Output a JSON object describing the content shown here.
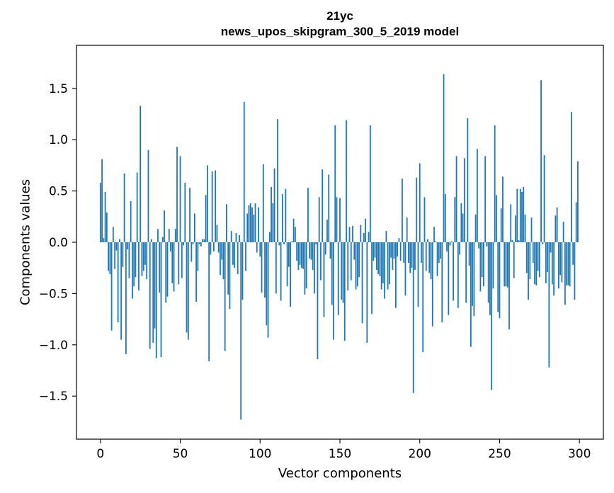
{
  "chart_data": {
    "type": "bar",
    "title": "21yc",
    "subtitle": "news_upos_skipgram_300_5_2019 model",
    "xlabel": "Vector components",
    "ylabel": "Components values",
    "xlim": [
      -15,
      315
    ],
    "ylim": [
      -1.92,
      1.92
    ],
    "x_ticks": [
      0,
      50,
      100,
      150,
      200,
      250,
      300
    ],
    "y_ticks": [
      -1.5,
      -1.0,
      -0.5,
      0.0,
      0.5,
      1.0,
      1.5
    ],
    "y_tick_labels": [
      "−1.5",
      "−1.0",
      "−0.5",
      "0.0",
      "0.5",
      "1.0",
      "1.5"
    ],
    "x_tick_labels": [
      "0",
      "50",
      "100",
      "150",
      "200",
      "250",
      "300"
    ],
    "grid": false,
    "bar_color": "#1f77b4",
    "x": [
      0,
      1,
      2,
      3,
      4,
      5,
      6,
      7,
      8,
      9,
      10,
      11,
      12,
      13,
      14,
      15,
      16,
      17,
      18,
      19,
      20,
      21,
      22,
      23,
      24,
      25,
      26,
      27,
      28,
      29,
      30,
      31,
      32,
      33,
      34,
      35,
      36,
      37,
      38,
      39,
      40,
      41,
      42,
      43,
      44,
      45,
      46,
      47,
      48,
      49,
      50,
      51,
      52,
      53,
      54,
      55,
      56,
      57,
      58,
      59,
      60,
      61,
      62,
      63,
      64,
      65,
      66,
      67,
      68,
      69,
      70,
      71,
      72,
      73,
      74,
      75,
      76,
      77,
      78,
      79,
      80,
      81,
      82,
      83,
      84,
      85,
      86,
      87,
      88,
      89,
      90,
      91,
      92,
      93,
      94,
      95,
      96,
      97,
      98,
      99,
      100,
      101,
      102,
      103,
      104,
      105,
      106,
      107,
      108,
      109,
      110,
      111,
      112,
      113,
      114,
      115,
      116,
      117,
      118,
      119,
      120,
      121,
      122,
      123,
      124,
      125,
      126,
      127,
      128,
      129,
      130,
      131,
      132,
      133,
      134,
      135,
      136,
      137,
      138,
      139,
      140,
      141,
      142,
      143,
      144,
      145,
      146,
      147,
      148,
      149,
      150,
      151,
      152,
      153,
      154,
      155,
      156,
      157,
      158,
      159,
      160,
      161,
      162,
      163,
      164,
      165,
      166,
      167,
      168,
      169,
      170,
      171,
      172,
      173,
      174,
      175,
      176,
      177,
      178,
      179,
      180,
      181,
      182,
      183,
      184,
      185,
      186,
      187,
      188,
      189,
      190,
      191,
      192,
      193,
      194,
      195,
      196,
      197,
      198,
      199,
      200,
      201,
      202,
      203,
      204,
      205,
      206,
      207,
      208,
      209,
      210,
      211,
      212,
      213,
      214,
      215,
      216,
      217,
      218,
      219,
      220,
      221,
      222,
      223,
      224,
      225,
      226,
      227,
      228,
      229,
      230,
      231,
      232,
      233,
      234,
      235,
      236,
      237,
      238,
      239,
      240,
      241,
      242,
      243,
      244,
      245,
      246,
      247,
      248,
      249,
      250,
      251,
      252,
      253,
      254,
      255,
      256,
      257,
      258,
      259,
      260,
      261,
      262,
      263,
      264,
      265,
      266,
      267,
      268,
      269,
      270,
      271,
      272,
      273,
      274,
      275,
      276,
      277,
      278,
      279,
      280,
      281,
      282,
      283,
      284,
      285,
      286,
      287,
      288,
      289,
      290,
      291,
      292,
      293,
      294,
      295,
      296,
      297,
      298,
      299
    ],
    "values": [
      0.58,
      0.81,
      0.04,
      0.49,
      0.29,
      -0.28,
      -0.31,
      -0.86,
      0.15,
      -0.26,
      -0.08,
      -0.78,
      0.03,
      -0.95,
      -0.24,
      0.67,
      -1.09,
      -0.07,
      -0.35,
      0.4,
      -0.55,
      -0.43,
      -0.34,
      0.68,
      -0.47,
      1.33,
      -0.33,
      -0.28,
      -0.22,
      -0.36,
      0.9,
      -1.04,
      0.03,
      -0.98,
      -0.84,
      -1.13,
      0.13,
      -0.49,
      -1.12,
      0.05,
      0.31,
      -0.59,
      -0.53,
      0.13,
      -0.09,
      -0.4,
      -0.48,
      0.13,
      0.93,
      -0.41,
      0.84,
      -0.35,
      -0.03,
      0.58,
      -0.88,
      -0.95,
      0.53,
      -0.19,
      -0.02,
      0.28,
      -0.58,
      -0.28,
      -0.02,
      -0.04,
      0.03,
      0.03,
      0.46,
      0.75,
      -1.16,
      -0.12,
      0.69,
      -0.09,
      0.7,
      0.17,
      -0.1,
      -0.32,
      -0.17,
      -0.36,
      -1.06,
      0.37,
      -0.51,
      -0.65,
      0.11,
      -0.22,
      -0.25,
      0.09,
      -0.31,
      0.07,
      -1.73,
      -0.56,
      1.37,
      -0.28,
      0.28,
      0.36,
      0.38,
      0.34,
      0.27,
      0.38,
      -0.1,
      0.34,
      -0.14,
      -0.49,
      0.76,
      -0.54,
      -0.81,
      -0.93,
      0.1,
      0.54,
      0.38,
      0.72,
      -0.5,
      1.2,
      -0.03,
      -0.57,
      0.47,
      -0.02,
      0.52,
      -0.43,
      -0.24,
      -0.63,
      0.01,
      0.23,
      0.15,
      -0.18,
      -0.27,
      -0.22,
      -0.25,
      -0.26,
      -0.51,
      -0.45,
      0.53,
      -0.16,
      -0.17,
      -0.27,
      -0.5,
      -0.02,
      -1.14,
      0.44,
      -0.37,
      0.71,
      -0.73,
      -0.12,
      0.22,
      0.66,
      -0.16,
      -0.61,
      -0.95,
      1.14,
      0.44,
      -0.71,
      0.43,
      -0.56,
      -0.59,
      -0.96,
      1.19,
      -0.47,
      0.15,
      -0.37,
      0.16,
      -0.17,
      -0.46,
      -0.43,
      -0.34,
      0.17,
      -0.79,
      0.09,
      0.23,
      -0.98,
      0.1,
      1.14,
      -0.7,
      -0.18,
      -0.15,
      -0.27,
      -0.31,
      -0.33,
      -0.46,
      -0.4,
      -0.55,
      0.11,
      -0.46,
      -0.41,
      -0.15,
      -0.27,
      -0.16,
      -0.64,
      -0.14,
      0.04,
      -0.18,
      0.62,
      -0.2,
      -0.52,
      0.24,
      -0.2,
      -0.3,
      -0.25,
      -1.47,
      -0.27,
      0.63,
      -0.63,
      0.77,
      -0.2,
      -1.07,
      0.44,
      -0.28,
      0.03,
      -0.3,
      -0.36,
      -0.82,
      0.15,
      0.01,
      -0.33,
      -0.2,
      -0.16,
      -0.78,
      1.64,
      0.47,
      -0.09,
      -0.71,
      -0.03,
      0.01,
      -0.57,
      0.44,
      0.84,
      -0.64,
      -0.12,
      0.38,
      0.28,
      0.82,
      -0.59,
      1.21,
      -0.23,
      -1.02,
      -0.62,
      -0.72,
      0.27,
      0.91,
      -0.06,
      -0.48,
      -0.34,
      -0.43,
      0.84,
      -0.04,
      -0.59,
      -0.71,
      -1.44,
      -0.45,
      1.14,
      0.46,
      -0.68,
      -0.74,
      0.33,
      0.64,
      -0.43,
      -0.43,
      -0.44,
      -0.85,
      0.37,
      0.02,
      -0.35,
      0.26,
      0.52,
      0.02,
      0.52,
      0.49,
      0.54,
      0.27,
      -0.3,
      -0.56,
      -0.36,
      0.24,
      -0.2,
      -0.41,
      -0.42,
      -0.28,
      -0.34,
      1.58,
      -0.02,
      0.85,
      -0.4,
      -0.29,
      -1.22,
      -0.1,
      -0.41,
      -0.52,
      0.26,
      0.34,
      -0.45,
      -0.32,
      -0.39,
      0.2,
      -0.61,
      -0.42,
      -0.42,
      -0.43,
      1.27,
      -0.22,
      -0.56,
      0.39,
      0.79
    ]
  }
}
